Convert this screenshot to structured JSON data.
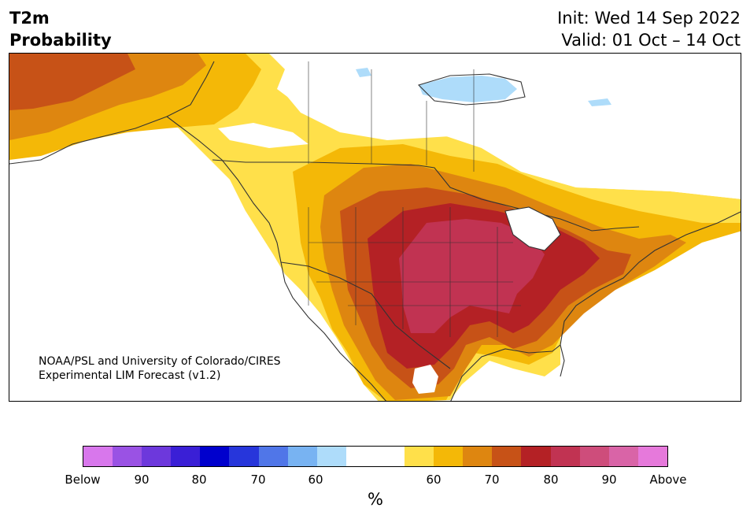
{
  "title": {
    "variable": "T2m",
    "subtitle": "Probability",
    "init": "Init: Wed 14 Sep 2022",
    "valid": "Valid: 01 Oct – 14 Oct"
  },
  "credit": {
    "line1": "NOAA/PSL and University of Colorado/CIRES",
    "line2": "Experimental LIM Forecast (v1.2)"
  },
  "colorbar": {
    "colors": [
      "#d877ec",
      "#9a52e4",
      "#6d38dc",
      "#3a1fd6",
      "#0000cd",
      "#2736db",
      "#5076e8",
      "#78b3f2",
      "#aedcfa",
      "#ffffff",
      "#ffffff",
      "#ffe04a",
      "#f4b807",
      "#de8610",
      "#c75217",
      "#b42125",
      "#c13352",
      "#ce4d7b",
      "#d964a7",
      "#e679db"
    ],
    "tick_labels": [
      "Below",
      "90",
      "80",
      "70",
      "60",
      "60",
      "70",
      "80",
      "90",
      "Above"
    ],
    "unit": "%"
  },
  "legend_colors": {
    "p60": "#ffe04a",
    "p65": "#f4b807",
    "p70": "#de8610",
    "p75": "#c75217",
    "p80": "#b42125",
    "p85": "#c13352",
    "below60": "#aedcfa",
    "neutral": "#ffffff"
  }
}
